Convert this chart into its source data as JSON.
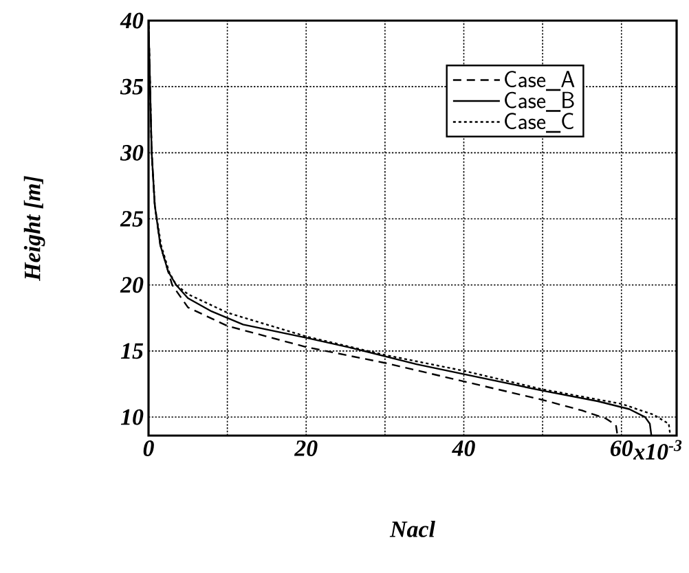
{
  "chart_data": {
    "type": "line",
    "xlabel": "Nacl",
    "ylabel": "Height [m]",
    "xlim": [
      0,
      67
    ],
    "ylim": [
      8.6,
      40
    ],
    "xticks": [
      0,
      {
        "value": 10,
        "label": null
      },
      20,
      {
        "value": 30,
        "label": null
      },
      40,
      {
        "value": 50,
        "label": null
      },
      60
    ],
    "annotations": [
      "x10$^{-3}$"
    ],
    "yticks": [
      10,
      15,
      20,
      25,
      30,
      35,
      40
    ],
    "grid": true,
    "legend": "top right",
    "series": [
      {
        "name": "Case_A",
        "color": "#000000",
        "line_style": "dashed",
        "x": [
          0,
          0.2,
          0.4,
          0.8,
          1.5,
          2.5,
          3,
          5,
          10,
          20,
          30,
          40,
          50,
          55,
          58,
          59.3,
          59.5
        ],
        "values": [
          40,
          35,
          30,
          26,
          23,
          21,
          20,
          18.3,
          16.9,
          15.3,
          14.1,
          12.7,
          11.3,
          10.5,
          9.9,
          9.4,
          8.6
        ]
      },
      {
        "name": "Case_B",
        "color": "#000000",
        "line_style": "solid",
        "x": [
          0,
          0.2,
          0.4,
          0.8,
          1.5,
          2.5,
          3.5,
          5,
          8,
          12,
          20,
          26,
          34,
          42,
          50,
          57,
          61,
          63,
          63.6,
          63.8
        ],
        "values": [
          40,
          35,
          30,
          26,
          23,
          21,
          20,
          19,
          18,
          17,
          16,
          15.2,
          14,
          13,
          12,
          11.2,
          10.6,
          10,
          9.5,
          8.6
        ]
      },
      {
        "name": "Case_C",
        "color": "#000000",
        "line_style": "dotted",
        "x": [
          0,
          0.2,
          0.4,
          0.8,
          1.6,
          2.6,
          3.5,
          5,
          10,
          20,
          30,
          40,
          50,
          60,
          64,
          66,
          66.2
        ],
        "values": [
          40,
          35,
          30,
          26,
          23,
          21,
          20,
          19.3,
          17.9,
          16.1,
          14.7,
          13.5,
          12.1,
          11,
          10.2,
          9.5,
          8.6
        ]
      }
    ]
  }
}
